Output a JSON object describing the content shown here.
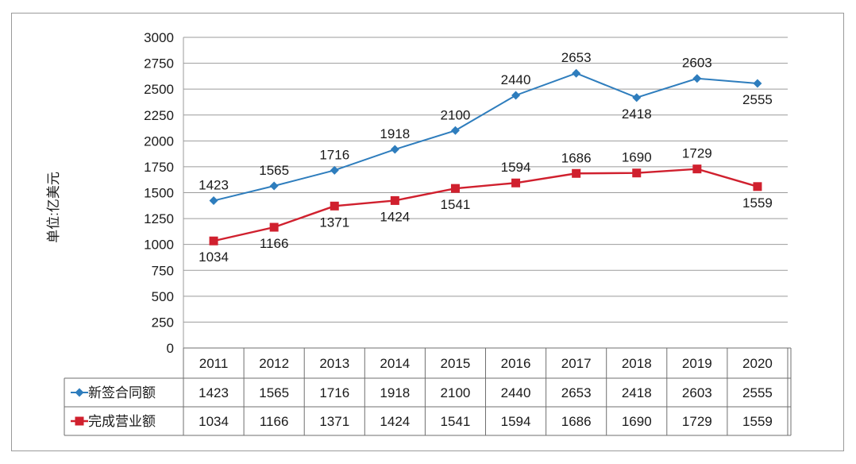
{
  "chart_data": {
    "type": "line",
    "title": "",
    "xlabel": "",
    "ylabel": "单位:亿美元",
    "ylim": [
      0,
      3000
    ],
    "yticks": [
      0,
      250,
      500,
      750,
      1000,
      1250,
      1500,
      1750,
      2000,
      2250,
      2500,
      2750,
      3000
    ],
    "grid": true,
    "categories": [
      "2011",
      "2012",
      "2013",
      "2014",
      "2015",
      "2016",
      "2017",
      "2018",
      "2019",
      "2020"
    ],
    "series": [
      {
        "name": "新签合同额",
        "color": "#2e7dbd",
        "marker": "diamond",
        "values": [
          1423,
          1565,
          1716,
          1918,
          2100,
          2440,
          2653,
          2418,
          2603,
          2555
        ],
        "label_pos": [
          "above",
          "above",
          "above",
          "above",
          "above",
          "above",
          "above",
          "below",
          "above",
          "below"
        ]
      },
      {
        "name": "完成营业额",
        "color": "#d0202e",
        "marker": "square",
        "values": [
          1034,
          1166,
          1371,
          1424,
          1541,
          1594,
          1686,
          1690,
          1729,
          1559
        ],
        "label_pos": [
          "below",
          "below",
          "below",
          "below",
          "below",
          "above",
          "above",
          "above",
          "above",
          "below"
        ]
      }
    ],
    "data_table": true
  }
}
